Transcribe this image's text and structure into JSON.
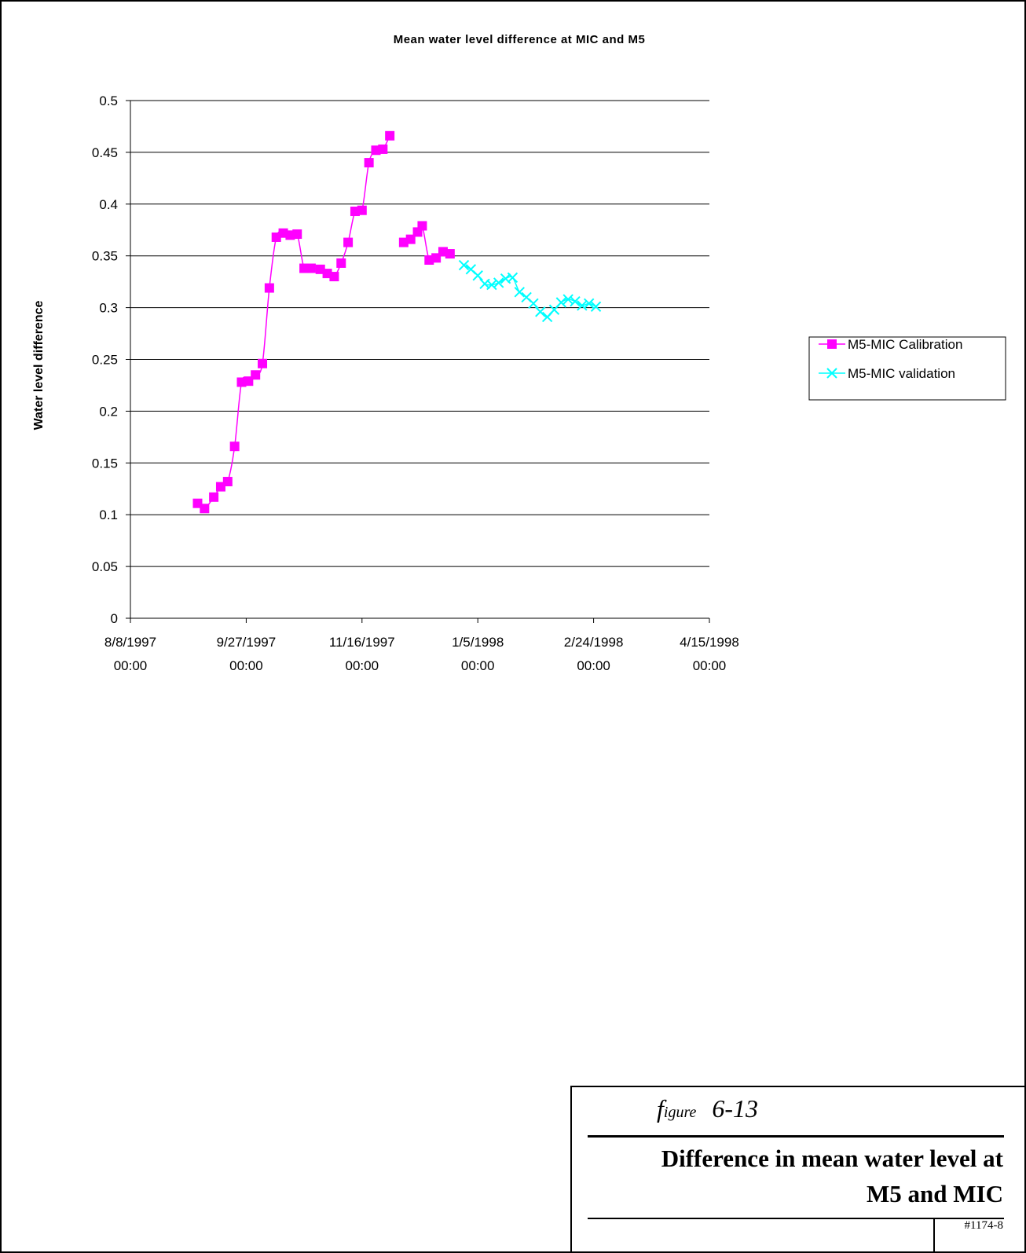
{
  "chart_data": {
    "type": "line",
    "title": "Mean water level difference at MIC and M5",
    "xlabel": "",
    "ylabel": "Water level difference",
    "x_type": "date",
    "xlim": [
      "1997-08-08",
      "1998-04-15"
    ],
    "ylim": [
      0,
      0.5
    ],
    "y_ticks": [
      0,
      0.05,
      0.1,
      0.15,
      0.2,
      0.25,
      0.3,
      0.35,
      0.4,
      0.45,
      0.5
    ],
    "y_tick_labels": [
      "0",
      "0.05",
      "0.1",
      "0.15",
      "0.2",
      "0.25",
      "0.3",
      "0.35",
      "0.4",
      "0.45",
      "0.5"
    ],
    "x_ticks": [
      "1997-08-08",
      "1997-09-27",
      "1997-11-16",
      "1998-01-05",
      "1998-02-24",
      "1998-04-15"
    ],
    "x_tick_labels": [
      [
        "8/8/1997",
        "00:00"
      ],
      [
        "9/27/1997",
        "00:00"
      ],
      [
        "11/16/1997",
        "00:00"
      ],
      [
        "1/5/1998",
        "00:00"
      ],
      [
        "2/24/1998",
        "00:00"
      ],
      [
        "4/15/1998",
        "00:00"
      ]
    ],
    "grid": "horizontal",
    "legend_position": "right",
    "series": [
      {
        "name": "M5-MIC Calibration",
        "color": "#ff00ff",
        "marker": "square",
        "segments": [
          {
            "x": [
              "1997-09-06",
              "1997-09-09",
              "1997-09-13",
              "1997-09-16",
              "1997-09-19",
              "1997-09-22",
              "1997-09-25",
              "1997-09-28",
              "1997-10-01",
              "1997-10-04",
              "1997-10-07",
              "1997-10-10",
              "1997-10-13",
              "1997-10-16",
              "1997-10-19",
              "1997-10-22",
              "1997-10-25",
              "1997-10-29",
              "1997-11-01",
              "1997-11-04",
              "1997-11-07",
              "1997-11-10",
              "1997-11-13",
              "1997-11-16",
              "1997-11-19",
              "1997-11-22",
              "1997-11-25",
              "1997-11-28"
            ],
            "y": [
              0.111,
              0.106,
              0.117,
              0.127,
              0.132,
              0.166,
              0.228,
              0.229,
              0.235,
              0.246,
              0.319,
              0.368,
              0.372,
              0.37,
              0.371,
              0.338,
              0.338,
              0.337,
              0.333,
              0.33,
              0.343,
              0.363,
              0.393,
              0.394,
              0.44,
              0.452,
              0.453,
              0.466
            ]
          },
          {
            "x": [
              "1997-12-04",
              "1997-12-07",
              "1997-12-10",
              "1997-12-12",
              "1997-12-15",
              "1997-12-18",
              "1997-12-21",
              "1997-12-24"
            ],
            "y": [
              0.363,
              0.366,
              0.373,
              0.379,
              0.346,
              0.348,
              0.354,
              0.352
            ]
          }
        ]
      },
      {
        "name": "M5-MIC validation",
        "color": "#00ffff",
        "marker": "x",
        "segments": [
          {
            "x": [
              "1997-12-30",
              "1998-01-02",
              "1998-01-05",
              "1998-01-08",
              "1998-01-11",
              "1998-01-14",
              "1998-01-17",
              "1998-01-20",
              "1998-01-23",
              "1998-01-26",
              "1998-01-29",
              "1998-02-01",
              "1998-02-04",
              "1998-02-07",
              "1998-02-10",
              "1998-02-13",
              "1998-02-16",
              "1998-02-19",
              "1998-02-22",
              "1998-02-25"
            ],
            "y": [
              0.341,
              0.337,
              0.331,
              0.323,
              0.322,
              0.324,
              0.328,
              0.329,
              0.315,
              0.31,
              0.304,
              0.296,
              0.291,
              0.298,
              0.305,
              0.308,
              0.306,
              0.302,
              0.304,
              0.301
            ]
          }
        ]
      }
    ]
  },
  "caption": {
    "figure_prefix_f": "f",
    "figure_prefix_rest": "igure",
    "figure_number": "6-13",
    "title_line1": "Difference in mean water level at",
    "title_line2": "M5 and MIC",
    "doc_id": "#1174-8"
  }
}
